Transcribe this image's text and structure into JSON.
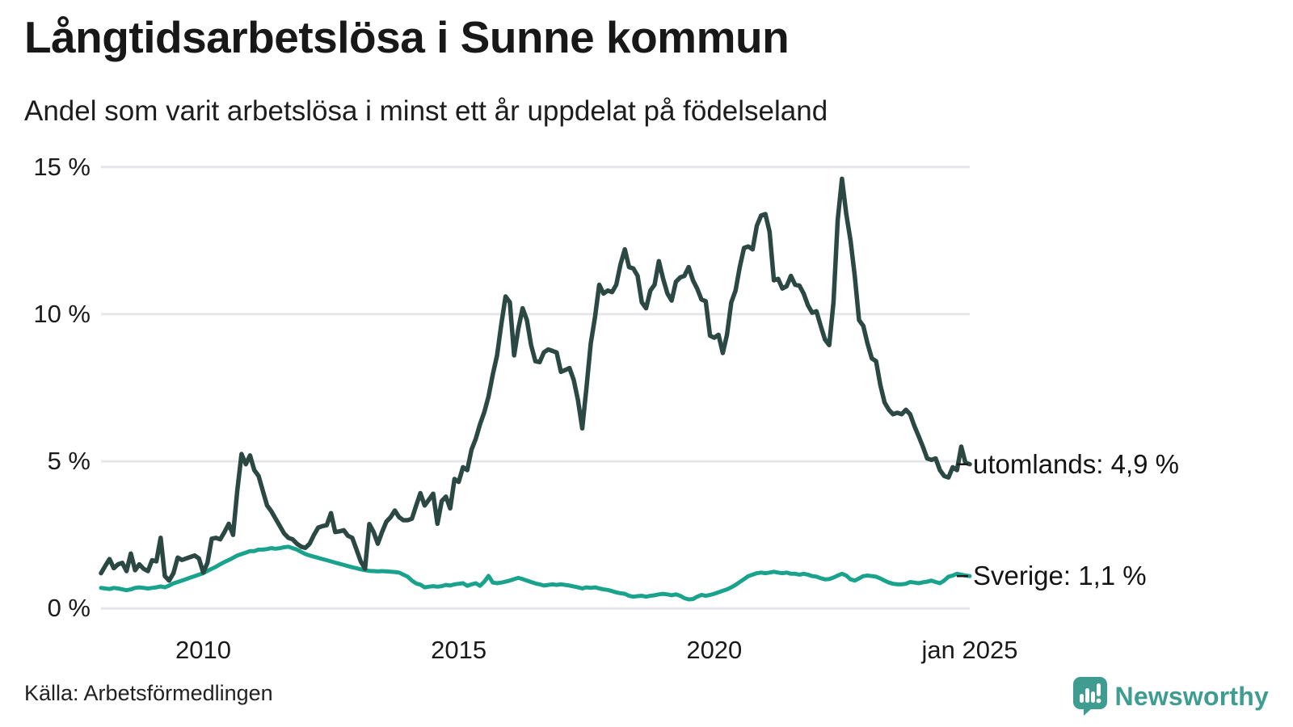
{
  "header": {
    "title": "Långtidsarbetslösa i Sunne kommun",
    "subtitle": "Andel som varit arbetslösa i minst ett år uppdelat på födelseland"
  },
  "chart_data": {
    "type": "line",
    "title": "Långtidsarbetslösa i Sunne kommun",
    "subtitle": "Andel som varit arbetslösa i minst ett år uppdelat på födelseland",
    "unit": "%",
    "frequency": "monthly",
    "x_start": "2008-01",
    "x_end": "2025-01",
    "grid": true,
    "legend_position": "line-end-labels-right",
    "x_axis": {
      "ticks": [
        {
          "label": "2010",
          "month_index": 24
        },
        {
          "label": "2015",
          "month_index": 84
        },
        {
          "label": "2020",
          "month_index": 144
        },
        {
          "label": "jan 2025",
          "month_index": 204
        }
      ]
    },
    "y_axis": {
      "range": [
        0,
        15
      ],
      "ticks": [
        {
          "label": "0 %",
          "value": 0
        },
        {
          "label": "5 %",
          "value": 5
        },
        {
          "label": "10 %",
          "value": 10
        },
        {
          "label": "15 %",
          "value": 15
        }
      ]
    },
    "series": [
      {
        "name": "Sverige",
        "color": "#19a28c",
        "stroke_width": 5,
        "end_label": "Sverige: 1,1 %",
        "last_value": 1.1,
        "values": [
          0.7,
          0.68,
          0.66,
          0.7,
          0.68,
          0.65,
          0.62,
          0.65,
          0.7,
          0.72,
          0.7,
          0.68,
          0.7,
          0.72,
          0.75,
          0.72,
          0.78,
          0.85,
          0.9,
          0.95,
          1.0,
          1.05,
          1.1,
          1.15,
          1.2,
          1.28,
          1.35,
          1.42,
          1.5,
          1.58,
          1.65,
          1.72,
          1.8,
          1.85,
          1.9,
          1.95,
          1.95,
          2.0,
          2.0,
          2.02,
          2.05,
          2.03,
          2.05,
          2.08,
          2.1,
          2.05,
          2.0,
          1.92,
          1.85,
          1.8,
          1.76,
          1.72,
          1.68,
          1.64,
          1.6,
          1.56,
          1.52,
          1.48,
          1.44,
          1.4,
          1.37,
          1.33,
          1.3,
          1.28,
          1.27,
          1.26,
          1.27,
          1.26,
          1.25,
          1.24,
          1.22,
          1.15,
          1.08,
          0.95,
          0.85,
          0.81,
          0.72,
          0.74,
          0.76,
          0.74,
          0.76,
          0.8,
          0.78,
          0.82,
          0.84,
          0.86,
          0.77,
          0.82,
          0.86,
          0.77,
          0.91,
          1.11,
          0.88,
          0.86,
          0.88,
          0.91,
          0.95,
          1.0,
          1.04,
          1.0,
          0.95,
          0.9,
          0.85,
          0.82,
          0.78,
          0.8,
          0.82,
          0.8,
          0.82,
          0.8,
          0.78,
          0.75,
          0.72,
          0.68,
          0.72,
          0.7,
          0.72,
          0.68,
          0.65,
          0.63,
          0.59,
          0.55,
          0.52,
          0.5,
          0.43,
          0.4,
          0.42,
          0.43,
          0.4,
          0.43,
          0.45,
          0.48,
          0.5,
          0.48,
          0.45,
          0.48,
          0.43,
          0.35,
          0.31,
          0.32,
          0.4,
          0.46,
          0.43,
          0.46,
          0.5,
          0.55,
          0.6,
          0.65,
          0.72,
          0.8,
          0.9,
          1.0,
          1.1,
          1.15,
          1.2,
          1.22,
          1.2,
          1.22,
          1.25,
          1.22,
          1.2,
          1.22,
          1.18,
          1.18,
          1.15,
          1.18,
          1.15,
          1.1,
          1.08,
          1.03,
          0.99,
          1.0,
          1.05,
          1.12,
          1.18,
          1.12,
          0.99,
          0.95,
          1.02,
          1.1,
          1.12,
          1.1,
          1.08,
          1.02,
          0.95,
          0.88,
          0.84,
          0.82,
          0.82,
          0.84,
          0.9,
          0.88,
          0.86,
          0.89,
          0.91,
          0.95,
          0.9,
          0.86,
          0.95,
          1.08,
          1.12,
          1.18,
          1.15,
          1.12,
          1.1
        ]
      },
      {
        "name": "utomlands",
        "color": "#2b4842",
        "stroke_width": 5.5,
        "end_label": "utomlands: 4,9 %",
        "last_value": 4.9,
        "values": [
          1.2,
          1.45,
          1.68,
          1.37,
          1.5,
          1.55,
          1.27,
          1.87,
          1.3,
          1.5,
          1.35,
          1.27,
          1.64,
          1.6,
          2.4,
          1.1,
          0.95,
          1.2,
          1.73,
          1.65,
          1.7,
          1.75,
          1.8,
          1.7,
          1.22,
          1.55,
          2.37,
          2.4,
          2.35,
          2.6,
          2.88,
          2.5,
          4.0,
          5.25,
          4.9,
          5.2,
          4.7,
          4.5,
          4.0,
          3.5,
          3.3,
          3.05,
          2.8,
          2.55,
          2.4,
          2.35,
          2.2,
          2.1,
          2.06,
          2.2,
          2.5,
          2.75,
          2.8,
          2.83,
          3.24,
          2.6,
          2.62,
          2.66,
          2.47,
          2.4,
          2.0,
          1.6,
          1.35,
          2.87,
          2.6,
          2.2,
          2.6,
          2.95,
          3.1,
          3.33,
          3.1,
          3.0,
          3.0,
          3.05,
          3.5,
          3.92,
          3.5,
          3.7,
          3.9,
          2.88,
          3.65,
          3.8,
          3.4,
          4.4,
          4.3,
          4.8,
          4.7,
          5.4,
          5.76,
          6.26,
          6.67,
          7.2,
          7.95,
          8.6,
          9.65,
          10.6,
          10.4,
          8.6,
          9.5,
          10.2,
          9.8,
          8.95,
          8.4,
          8.37,
          8.7,
          8.8,
          8.75,
          8.7,
          8.04,
          8.1,
          8.17,
          7.77,
          7.08,
          6.12,
          7.5,
          9.0,
          9.9,
          11.0,
          10.7,
          10.8,
          10.75,
          11.0,
          11.7,
          12.2,
          11.6,
          11.55,
          11.3,
          10.4,
          10.2,
          10.8,
          11.0,
          11.8,
          11.2,
          10.7,
          10.46,
          11.1,
          11.25,
          11.3,
          11.6,
          11.15,
          10.87,
          10.5,
          10.44,
          9.27,
          9.2,
          9.3,
          8.68,
          9.3,
          10.4,
          10.8,
          11.6,
          12.25,
          12.3,
          12.2,
          13.0,
          13.35,
          13.4,
          12.8,
          11.15,
          11.2,
          10.87,
          10.95,
          11.3,
          11.0,
          10.97,
          10.7,
          10.3,
          10.05,
          10.1,
          9.6,
          9.14,
          8.95,
          10.4,
          13.2,
          14.6,
          13.4,
          12.5,
          11.3,
          9.8,
          9.6,
          9.0,
          8.5,
          8.4,
          7.6,
          7.0,
          6.75,
          6.6,
          6.65,
          6.6,
          6.75,
          6.6,
          6.2,
          5.85,
          5.5,
          5.1,
          5.05,
          5.1,
          4.7,
          4.5,
          4.45,
          4.8,
          4.7,
          5.5,
          4.95,
          4.9
        ]
      }
    ]
  },
  "footer": {
    "source": "Källa: Arbetsförmedlingen",
    "brand": "Newsworthy",
    "brand_color": "#3f9c91"
  },
  "style": {
    "grid_color": "#e6e6ea",
    "leader_dash_color": "#1c1c1c"
  }
}
